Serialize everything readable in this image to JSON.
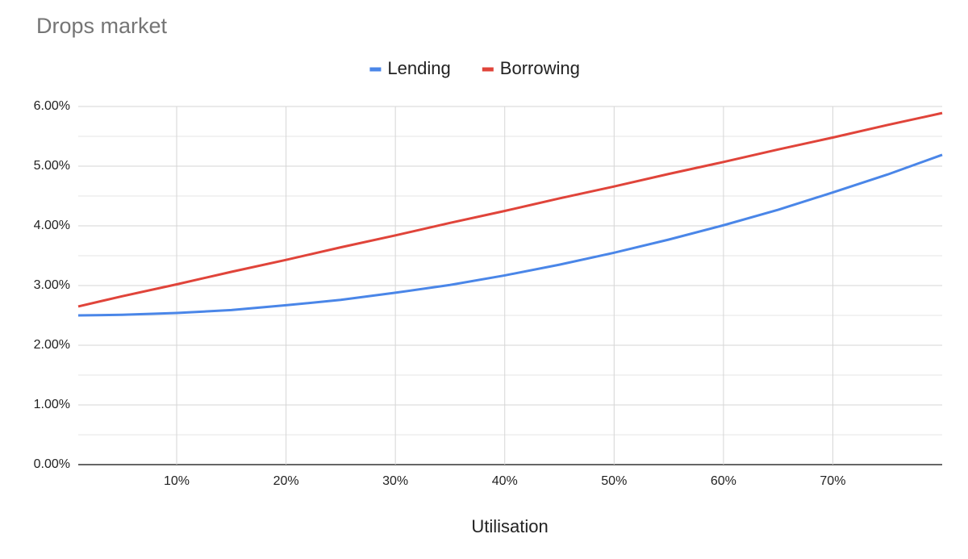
{
  "chart_data": {
    "type": "line",
    "title": "Drops market",
    "x_label": "Utilisation",
    "x": [
      1,
      5,
      10,
      15,
      20,
      25,
      30,
      35,
      40,
      45,
      50,
      55,
      60,
      65,
      70,
      75,
      80
    ],
    "series": [
      {
        "name": "Lending",
        "color": "#4a86e8",
        "values": [
          2.5,
          2.51,
          2.54,
          2.59,
          2.67,
          2.76,
          2.88,
          3.01,
          3.17,
          3.35,
          3.55,
          3.77,
          4.01,
          4.27,
          4.56,
          4.86,
          5.19
        ]
      },
      {
        "name": "Borrowing",
        "color": "#e0443a",
        "values": [
          2.65,
          2.82,
          3.02,
          3.23,
          3.43,
          3.64,
          3.84,
          4.05,
          4.25,
          4.46,
          4.66,
          4.87,
          5.07,
          5.28,
          5.48,
          5.69,
          5.89
        ]
      }
    ],
    "xlim": [
      1,
      80
    ],
    "xticks": [
      {
        "value": 10,
        "label": "10%"
      },
      {
        "value": 20,
        "label": "20%"
      },
      {
        "value": 30,
        "label": "30%"
      },
      {
        "value": 40,
        "label": "40%"
      },
      {
        "value": 50,
        "label": "50%"
      },
      {
        "value": 60,
        "label": "60%"
      },
      {
        "value": 70,
        "label": "70%"
      }
    ],
    "ylim": [
      0,
      6
    ],
    "yticks": [
      {
        "value": 0,
        "label": "0.00%"
      },
      {
        "value": 1,
        "label": "1.00%"
      },
      {
        "value": 2,
        "label": "2.00%"
      },
      {
        "value": 3,
        "label": "3.00%"
      },
      {
        "value": 4,
        "label": "4.00%"
      },
      {
        "value": 5,
        "label": "5.00%"
      },
      {
        "value": 6,
        "label": "6.00%"
      }
    ],
    "grid": true,
    "minor_grid": true,
    "legend": "top"
  }
}
